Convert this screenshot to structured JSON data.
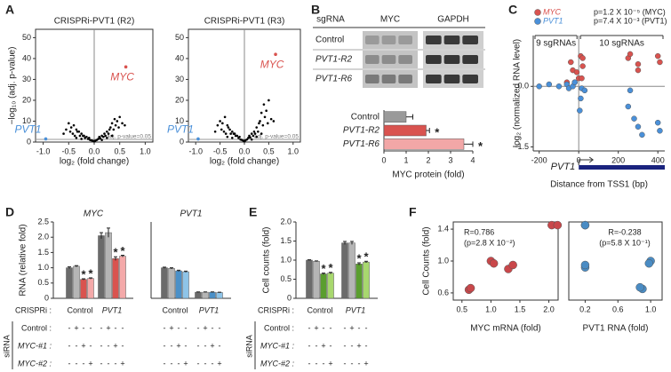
{
  "panel_labels": [
    "A",
    "B",
    "C",
    "D",
    "E",
    "F"
  ],
  "chart_data": [
    {
      "type": "scatter",
      "title": "CRISPRi-PVT1 (R2)",
      "xlabel": "log₂ (fold change)",
      "ylabel": "−log₁₀ (adj. p-value)",
      "xlim": [
        -1.15,
        1.15
      ],
      "ylim": [
        0,
        54
      ],
      "xticks": [
        {
          "value": -1,
          "label": "-1.0"
        },
        -0.5,
        {
          "value": 0,
          "label": "0.0"
        },
        0.5,
        {
          "value": 1,
          "label": "1.0"
        }
      ],
      "yticks": [
        0,
        10,
        20,
        30,
        40,
        50
      ],
      "frame": true,
      "zero_line_x": true,
      "color": "#000000",
      "x": [
        -0.6,
        -0.55,
        -0.5,
        -0.47,
        -0.45,
        -0.42,
        -0.4,
        -0.38,
        -0.35,
        -0.33,
        -0.3,
        -0.28,
        -0.25,
        -0.22,
        -0.2,
        -0.18,
        -0.15,
        -0.12,
        -0.1,
        -0.08,
        -0.05,
        -0.02,
        0,
        0.02,
        0.05,
        0.08,
        0.1,
        0.12,
        0.15,
        0.18,
        0.2,
        0.22,
        0.25,
        0.28,
        0.3,
        0.32,
        0.35,
        0.38,
        0.4,
        0.42,
        0.45,
        0.48,
        0.5,
        0.55,
        0.6,
        -0.35,
        0.35,
        0.25,
        -0.25,
        0.15
      ],
      "values": [
        4,
        6,
        9,
        5,
        7,
        4,
        8,
        3,
        6,
        5,
        5,
        3,
        4,
        3,
        3,
        2,
        2.5,
        1.5,
        2,
        1,
        0.8,
        0.5,
        0.3,
        0.6,
        1,
        1.5,
        2.5,
        1.8,
        3,
        2.5,
        4,
        3,
        5,
        4,
        6,
        7,
        9,
        6,
        11,
        8,
        10,
        7,
        12,
        9,
        8,
        2,
        3,
        2,
        1.5,
        1
      ],
      "highlights": [
        {
          "text": "MYC",
          "x": 0.62,
          "y": 36,
          "color": "#d9534f"
        },
        {
          "text": "PVT1",
          "x": -0.95,
          "y": 1.5,
          "color": "#4a90d9"
        }
      ],
      "threshold": 1.3,
      "threshold_label": "adj. p-value=0.05"
    },
    {
      "type": "scatter",
      "title": "CRISPRi-PVT1 (R3)",
      "xlabel": "log₂ (fold change)",
      "xlim": [
        -1.15,
        1.15
      ],
      "ylim": [
        0,
        54
      ],
      "xticks": [
        {
          "value": -1,
          "label": "-1.0"
        },
        -0.5,
        {
          "value": 0,
          "label": "0.0"
        },
        0.5,
        {
          "value": 1,
          "label": "1.0"
        }
      ],
      "yticks": [
        0,
        10,
        20,
        30,
        40,
        50
      ],
      "frame": true,
      "zero_line_x": true,
      "color": "#000000",
      "x": [
        -0.6,
        -0.55,
        -0.5,
        -0.47,
        -0.45,
        -0.42,
        -0.4,
        -0.38,
        -0.35,
        -0.33,
        -0.3,
        -0.28,
        -0.25,
        -0.22,
        -0.2,
        -0.18,
        -0.15,
        -0.12,
        -0.1,
        -0.08,
        -0.05,
        -0.02,
        0,
        0.02,
        0.05,
        0.08,
        0.1,
        0.12,
        0.15,
        0.18,
        0.2,
        0.22,
        0.25,
        0.28,
        0.3,
        0.32,
        0.35,
        0.38,
        0.4,
        0.42,
        0.45,
        0.48,
        0.5,
        0.55,
        0.6,
        -0.35,
        0.35,
        0.25,
        -0.25,
        0.15
      ],
      "values": [
        5,
        8,
        10,
        6,
        9,
        5,
        12,
        4,
        8,
        7,
        6,
        4,
        5,
        4,
        4,
        3,
        3,
        2,
        2.5,
        1.2,
        1,
        0.6,
        0.3,
        0.8,
        1.2,
        2,
        3,
        2.2,
        4,
        3,
        5,
        4,
        7,
        5,
        9,
        10,
        14,
        8,
        18,
        12,
        15,
        9,
        20,
        11,
        10,
        2.5,
        4,
        2.5,
        2,
        1.2
      ],
      "highlights": [
        {
          "text": "MYC",
          "x": 0.64,
          "y": 42,
          "color": "#d9534f"
        },
        {
          "text": "PVT1",
          "x": -0.95,
          "y": 1.5,
          "color": "#4a90d9"
        }
      ],
      "threshold": 1.3,
      "threshold_label": "adj. p-value=0.05"
    },
    {
      "type": "bar",
      "horizontal": true,
      "blot": {
        "header": "sgRNA",
        "columns": [
          "MYC",
          "GAPDH"
        ],
        "rows": [
          "Control",
          "PVT1-R2",
          "PVT1-R6"
        ]
      },
      "categories": [
        "Control",
        "PVT1-R2",
        "PVT1-R6"
      ],
      "values": [
        1,
        1.9,
        3.6
      ],
      "errors": [
        0.3,
        0.15,
        0.4
      ],
      "colors": [
        "#9a9a9a",
        "#d9534f",
        "#f2a7a7"
      ],
      "stars": [
        null,
        "*",
        "*"
      ],
      "xlim": [
        0,
        4
      ],
      "xticks": [
        0,
        1,
        2,
        3,
        4
      ],
      "xlabel": "MYC protein (fold)"
    },
    {
      "type": "scatter",
      "xlabel": "Distance from TSS1 (bp)",
      "ylabel": "log₂ (normalized RNA level)",
      "xlim": [
        -230,
        435
      ],
      "ylim": [
        -1.6,
        1.26
      ],
      "xticks": [
        -200,
        0,
        200,
        400
      ],
      "yticks": [
        -1.5,
        {
          "value": 0,
          "label": "0.0"
        }
      ],
      "zero_line_x": true,
      "zero_line_y": true,
      "series": [
        {
          "name": "MYC",
          "color": "#d9534f",
          "x": [
            -60,
            -40,
            -30,
            -20,
            -10,
            0,
            10,
            15,
            20,
            20,
            250,
            260,
            300,
            300,
            400,
            410
          ],
          "values": [
            0.1,
            0.6,
            0.4,
            0.1,
            0.35,
            0.2,
            0.75,
            0.2,
            0.7,
            0.5,
            0.7,
            0.8,
            0.4,
            0.55,
            0.75,
            0.6
          ]
        },
        {
          "name": "PVT1",
          "color": "#4a90d9",
          "x": [
            -200,
            -150,
            -100,
            -60,
            -50,
            -30,
            -20,
            5,
            10,
            15,
            30,
            250,
            260,
            280,
            300,
            320,
            400,
            410
          ],
          "values": [
            0,
            0.05,
            0,
            0.05,
            -0.05,
            0,
            0.1,
            -0.6,
            -0.3,
            -0.05,
            -0.1,
            -0.5,
            -0.1,
            -0.8,
            -1.0,
            -1.2,
            -0.9,
            -1.1
          ]
        }
      ],
      "p_values": [
        "p=1.2 X 10⁻⁵ (MYC)",
        "p=7.4 X 10⁻³ (PVT1)"
      ],
      "groups": [
        "9 sgRNAs",
        "10 sgRNAs"
      ],
      "gene": "PVT1"
    },
    {
      "type": "bar",
      "title": "MYC",
      "ylabel": "RNA (relative fold)",
      "categories": [
        "Control",
        "PVT1"
      ],
      "ylim": [
        0,
        2.5
      ],
      "yticks": [
        0,
        0.5,
        {
          "value": 1,
          "label": "1.0"
        },
        1.5,
        {
          "value": 2,
          "label": "2.0"
        },
        2.5
      ],
      "series": [
        {
          "color": "#6b6b6b",
          "values": [
            1.0,
            2.05
          ],
          "errors": [
            0.03,
            0.1
          ]
        },
        {
          "color": "#b5b5b5",
          "values": [
            1.05,
            2.15
          ],
          "errors": [
            0.02,
            0.15
          ]
        },
        {
          "color": "#d9534f",
          "values": [
            0.62,
            1.3
          ],
          "errors": [
            0.02,
            0.06
          ],
          "stars": [
            "*",
            "*"
          ]
        },
        {
          "color": "#f4a9a9",
          "values": [
            0.65,
            1.38
          ],
          "errors": [
            0.02,
            0.03
          ],
          "stars": [
            "*",
            "*"
          ]
        }
      ],
      "table": {
        "row_label": "CRISPRi :",
        "title": "siRNA",
        "row_labels": [
          "Control :",
          "MYC-#1 :",
          "MYC-#2 :"
        ],
        "signs": [
          [
            "-",
            "+",
            "-",
            "-",
            "-",
            "+",
            "-",
            "-"
          ],
          [
            "-",
            "-",
            "+",
            "-",
            "-",
            "-",
            "+",
            "-"
          ],
          [
            "-",
            "-",
            "-",
            "+",
            "-",
            "-",
            "-",
            "+"
          ]
        ]
      }
    },
    {
      "type": "bar",
      "title": "PVT1",
      "categories": [
        "Control",
        "PVT1"
      ],
      "ylim": [
        0,
        2.5
      ],
      "series": [
        {
          "color": "#6b6b6b",
          "values": [
            1.0,
            0.2
          ],
          "errors": [
            0.02,
            0.01
          ]
        },
        {
          "color": "#b5b5b5",
          "values": [
            0.98,
            0.2
          ],
          "errors": [
            0.02,
            0.01
          ]
        },
        {
          "color": "#4a90c8",
          "values": [
            0.9,
            0.2
          ],
          "errors": [
            0.02,
            0.01
          ]
        },
        {
          "color": "#8ec4e8",
          "values": [
            0.87,
            0.19
          ],
          "errors": [
            0.02,
            0.01
          ]
        }
      ],
      "table": {
        "signs": [
          [
            "-",
            "+",
            "-",
            "-",
            "-",
            "+",
            "-",
            "-"
          ],
          [
            "-",
            "-",
            "+",
            "-",
            "-",
            "-",
            "+",
            "-"
          ],
          [
            "-",
            "-",
            "-",
            "+",
            "-",
            "-",
            "-",
            "+"
          ]
        ]
      }
    },
    {
      "type": "bar",
      "ylabel": "Cell counts (fold)",
      "categories": [
        "Control",
        "PVT1"
      ],
      "ylim": [
        0,
        2.0
      ],
      "yticks": [
        0,
        0.5,
        {
          "value": 1,
          "label": "1.0"
        },
        1.5,
        {
          "value": 2,
          "label": "2.0"
        }
      ],
      "series": [
        {
          "color": "#6b6b6b",
          "values": [
            1.0,
            1.45
          ],
          "errors": [
            0.01,
            0.04
          ]
        },
        {
          "color": "#b5b5b5",
          "values": [
            0.97,
            1.45
          ],
          "errors": [
            0.01,
            0.04
          ]
        },
        {
          "color": "#5a9e2e",
          "values": [
            0.64,
            0.9
          ],
          "errors": [
            0.02,
            0.03
          ],
          "stars": [
            "*",
            "*"
          ]
        },
        {
          "color": "#a8d86e",
          "values": [
            0.66,
            0.95
          ],
          "errors": [
            0.02,
            0.02
          ],
          "stars": [
            "*",
            "*"
          ]
        }
      ],
      "table": {
        "row_label": "CRISPRi :",
        "title": "siRNA",
        "row_labels": [
          "Control :",
          "MYC-#1 :",
          "MYC-#2 :"
        ],
        "signs": [
          [
            "-",
            "+",
            "-",
            "-",
            "-",
            "+",
            "-",
            "-"
          ],
          [
            "-",
            "-",
            "+",
            "-",
            "-",
            "-",
            "+",
            "-"
          ],
          [
            "-",
            "-",
            "-",
            "+",
            "-",
            "-",
            "-",
            "+"
          ]
        ]
      }
    },
    {
      "type": "scatter",
      "xlabel": "MYC mRNA (fold)",
      "ylabel": "Cell Counts (fold)",
      "frame": true,
      "color": "#c9474a",
      "xlim": [
        0.35,
        2.16
      ],
      "ylim": [
        0.51,
        1.49
      ],
      "xticks": [
        0.5,
        {
          "value": 1,
          "label": "1.0"
        },
        1.5,
        {
          "value": 2,
          "label": "2.0"
        }
      ],
      "yticks": [
        0.6,
        {
          "value": 1,
          "label": "1.0"
        },
        1.4
      ],
      "x": [
        1.0,
        1.05,
        0.62,
        0.65,
        2.05,
        2.15,
        1.3,
        1.38
      ],
      "values": [
        1.0,
        0.97,
        0.64,
        0.66,
        1.45,
        1.45,
        0.9,
        0.95
      ],
      "stats": [
        "R=0.786",
        "(p=2.8 X 10⁻²)"
      ]
    },
    {
      "type": "scatter",
      "xlabel": "PVT1 RNA (fold)",
      "frame": true,
      "color": "#4a8cc4",
      "xlim": [
        0.0,
        1.14
      ],
      "ylim": [
        0.51,
        1.49
      ],
      "xticks": [
        0.2,
        0.6,
        {
          "value": 1,
          "label": "1.0"
        }
      ],
      "x": [
        1.0,
        0.98,
        0.9,
        0.87,
        0.2,
        0.2,
        0.2,
        0.2
      ],
      "values": [
        1.0,
        0.97,
        0.65,
        0.67,
        1.45,
        1.45,
        0.92,
        0.95
      ],
      "stats": [
        "R=-0.238",
        "(p=5.8 X 10⁻¹)"
      ]
    }
  ]
}
